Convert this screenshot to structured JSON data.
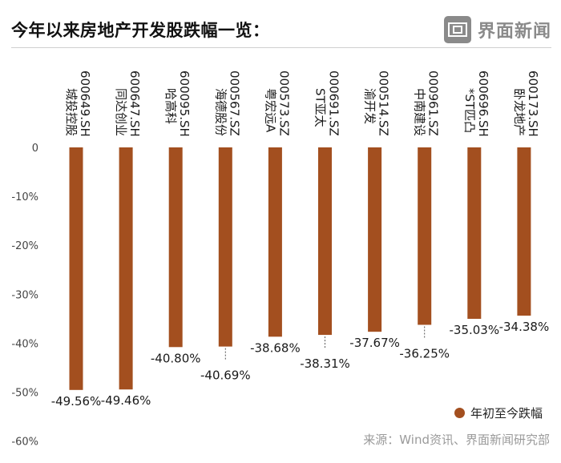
{
  "title": "今年以来房地产开发股跌幅一览：",
  "logo": {
    "text": "界面新闻",
    "icon": "jiemian-logo-icon"
  },
  "legend": {
    "label": "年初至今跌幅"
  },
  "source": "来源：Wind资讯、界面新闻研究部",
  "colors": {
    "bar": "#a34f1f",
    "axis_text": "#444444",
    "dotted": "#555555"
  },
  "chart_data": {
    "type": "bar",
    "categories": [
      {
        "code": "600649.SH",
        "name": "城投控股"
      },
      {
        "code": "600647.SH",
        "name": "同达创业"
      },
      {
        "code": "600095.SH",
        "name": "哈高科"
      },
      {
        "code": "000567.SZ",
        "name": "海德股份"
      },
      {
        "code": "000573.SZ",
        "name": "粤宏远A"
      },
      {
        "code": "000691.SZ",
        "name": "ST亚太"
      },
      {
        "code": "000514.SZ",
        "name": "渝开发"
      },
      {
        "code": "000961.SZ",
        "name": "中南建设"
      },
      {
        "code": "600696.SH",
        "name": "*ST匹凸"
      },
      {
        "code": "600173.SH",
        "name": "卧龙地产"
      }
    ],
    "series": [
      {
        "name": "年初至今跌幅",
        "values": [
          -49.56,
          -49.46,
          -40.8,
          -40.69,
          -38.68,
          -38.31,
          -37.67,
          -36.25,
          -35.03,
          -34.38
        ],
        "labels": [
          "-49.56%",
          "-49.46%",
          "-40.80%",
          "-40.69%",
          "-38.68%",
          "-38.31%",
          "-37.67%",
          "-36.25%",
          "-35.03%",
          "-34.38%"
        ]
      }
    ],
    "yticks": [
      0,
      -10,
      -20,
      -30,
      -40,
      -50,
      -60
    ],
    "ytick_labels": [
      "0",
      "-10%",
      "-20%",
      "-30%",
      "-40%",
      "-50%",
      "-60%"
    ],
    "ylim": [
      -60,
      0
    ],
    "legend_position": "bottom-right",
    "grid": false
  }
}
